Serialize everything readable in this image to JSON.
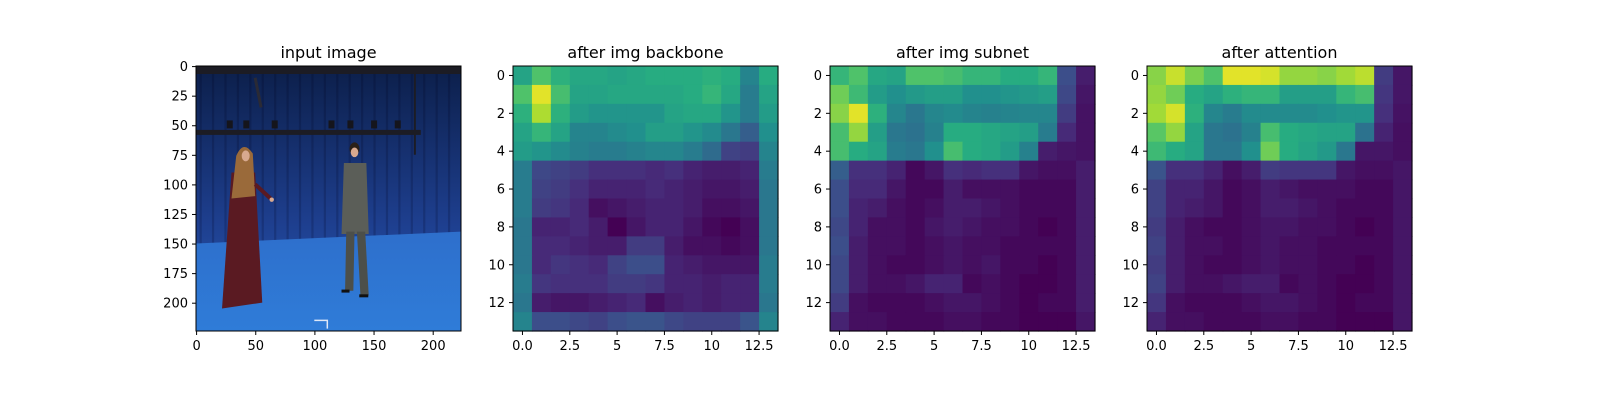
{
  "chart_data": [
    {
      "type": "image",
      "title": "input image",
      "xticks": [
        0,
        50,
        100,
        150,
        200
      ],
      "yticks": [
        0,
        25,
        50,
        75,
        100,
        125,
        150,
        175,
        200
      ],
      "xlim": [
        0,
        224
      ],
      "ylim": [
        224,
        0
      ],
      "image_colors": {
        "curtain_top": "#0c1f4a",
        "curtain_mid": "#1e3f8f",
        "floor": "#2f7cd8",
        "rig": "#1c1c24",
        "left_person_hair": "#9a6a3a",
        "left_person_dress": "#5a1a22",
        "right_person_suit": "#5b5e58",
        "skin": "#d8a98f"
      }
    },
    {
      "type": "heatmap",
      "title": "after img backbone",
      "colormap": "viridis",
      "xticks": [
        0,
        2.5,
        5.0,
        7.5,
        10.0,
        12.5
      ],
      "yticks": [
        0,
        2,
        4,
        6,
        8,
        10,
        12
      ],
      "values": [
        [
          0.58,
          0.72,
          0.64,
          0.6,
          0.6,
          0.58,
          0.6,
          0.62,
          0.62,
          0.62,
          0.64,
          0.62,
          0.45,
          0.62
        ],
        [
          0.72,
          0.96,
          0.7,
          0.58,
          0.58,
          0.6,
          0.6,
          0.6,
          0.6,
          0.62,
          0.66,
          0.6,
          0.42,
          0.58
        ],
        [
          0.64,
          0.88,
          0.64,
          0.55,
          0.52,
          0.52,
          0.52,
          0.52,
          0.58,
          0.6,
          0.6,
          0.52,
          0.42,
          0.55
        ],
        [
          0.58,
          0.66,
          0.58,
          0.45,
          0.45,
          0.48,
          0.5,
          0.56,
          0.56,
          0.52,
          0.48,
          0.4,
          0.3,
          0.5
        ],
        [
          0.55,
          0.52,
          0.48,
          0.44,
          0.42,
          0.42,
          0.44,
          0.46,
          0.46,
          0.42,
          0.35,
          0.2,
          0.18,
          0.45
        ],
        [
          0.42,
          0.22,
          0.2,
          0.18,
          0.14,
          0.14,
          0.14,
          0.12,
          0.14,
          0.1,
          0.08,
          0.08,
          0.1,
          0.42
        ],
        [
          0.42,
          0.2,
          0.18,
          0.14,
          0.1,
          0.1,
          0.1,
          0.12,
          0.1,
          0.08,
          0.06,
          0.06,
          0.08,
          0.4
        ],
        [
          0.42,
          0.18,
          0.16,
          0.12,
          0.04,
          0.06,
          0.08,
          0.1,
          0.1,
          0.08,
          0.04,
          0.04,
          0.06,
          0.4
        ],
        [
          0.4,
          0.1,
          0.1,
          0.12,
          0.08,
          0.0,
          0.06,
          0.1,
          0.1,
          0.06,
          0.02,
          0.0,
          0.04,
          0.4
        ],
        [
          0.4,
          0.12,
          0.12,
          0.1,
          0.08,
          0.08,
          0.18,
          0.18,
          0.08,
          0.04,
          0.04,
          0.02,
          0.04,
          0.4
        ],
        [
          0.4,
          0.12,
          0.16,
          0.14,
          0.12,
          0.2,
          0.24,
          0.24,
          0.1,
          0.08,
          0.06,
          0.06,
          0.06,
          0.42
        ],
        [
          0.42,
          0.16,
          0.14,
          0.14,
          0.14,
          0.18,
          0.18,
          0.16,
          0.1,
          0.1,
          0.08,
          0.1,
          0.1,
          0.42
        ],
        [
          0.4,
          0.08,
          0.06,
          0.06,
          0.08,
          0.1,
          0.12,
          0.04,
          0.08,
          0.1,
          0.08,
          0.1,
          0.1,
          0.4
        ],
        [
          0.45,
          0.24,
          0.24,
          0.22,
          0.2,
          0.24,
          0.26,
          0.26,
          0.22,
          0.2,
          0.2,
          0.2,
          0.26,
          0.45
        ]
      ]
    },
    {
      "type": "heatmap",
      "title": "after img subnet",
      "colormap": "viridis",
      "xticks": [
        0,
        2.5,
        5.0,
        7.5,
        10.0,
        12.5
      ],
      "yticks": [
        0,
        2,
        4,
        6,
        8,
        10,
        12
      ],
      "values": [
        [
          0.66,
          0.72,
          0.6,
          0.58,
          0.72,
          0.72,
          0.7,
          0.66,
          0.66,
          0.62,
          0.62,
          0.66,
          0.24,
          0.08
        ],
        [
          0.78,
          0.68,
          0.55,
          0.5,
          0.54,
          0.56,
          0.56,
          0.5,
          0.5,
          0.52,
          0.54,
          0.56,
          0.22,
          0.06
        ],
        [
          0.82,
          0.96,
          0.64,
          0.46,
          0.4,
          0.46,
          0.48,
          0.45,
          0.44,
          0.45,
          0.46,
          0.46,
          0.18,
          0.05
        ],
        [
          0.7,
          0.84,
          0.56,
          0.4,
          0.38,
          0.44,
          0.62,
          0.62,
          0.6,
          0.58,
          0.56,
          0.42,
          0.12,
          0.05
        ],
        [
          0.7,
          0.62,
          0.58,
          0.42,
          0.4,
          0.5,
          0.7,
          0.62,
          0.6,
          0.55,
          0.44,
          0.08,
          0.06,
          0.05
        ],
        [
          0.3,
          0.14,
          0.14,
          0.1,
          0.02,
          0.06,
          0.14,
          0.12,
          0.14,
          0.14,
          0.06,
          0.04,
          0.04,
          0.08
        ],
        [
          0.24,
          0.12,
          0.12,
          0.06,
          0.02,
          0.02,
          0.08,
          0.04,
          0.04,
          0.04,
          0.02,
          0.02,
          0.02,
          0.08
        ],
        [
          0.24,
          0.1,
          0.08,
          0.04,
          0.02,
          0.04,
          0.08,
          0.08,
          0.06,
          0.04,
          0.02,
          0.02,
          0.02,
          0.08
        ],
        [
          0.22,
          0.1,
          0.04,
          0.04,
          0.02,
          0.06,
          0.08,
          0.06,
          0.04,
          0.04,
          0.02,
          0.0,
          0.02,
          0.08
        ],
        [
          0.24,
          0.08,
          0.04,
          0.04,
          0.02,
          0.04,
          0.06,
          0.04,
          0.04,
          0.02,
          0.02,
          0.02,
          0.02,
          0.08
        ],
        [
          0.22,
          0.08,
          0.04,
          0.02,
          0.02,
          0.04,
          0.06,
          0.04,
          0.06,
          0.02,
          0.02,
          0.0,
          0.02,
          0.08
        ],
        [
          0.22,
          0.08,
          0.04,
          0.04,
          0.06,
          0.1,
          0.1,
          0.02,
          0.04,
          0.02,
          0.0,
          0.0,
          0.02,
          0.08
        ],
        [
          0.18,
          0.04,
          0.02,
          0.02,
          0.02,
          0.04,
          0.06,
          0.06,
          0.04,
          0.02,
          0.0,
          0.02,
          0.02,
          0.08
        ],
        [
          0.1,
          0.04,
          0.04,
          0.02,
          0.02,
          0.02,
          0.04,
          0.04,
          0.02,
          0.02,
          0.0,
          0.0,
          0.0,
          0.06
        ]
      ]
    },
    {
      "type": "heatmap",
      "title": "after attention",
      "colormap": "viridis",
      "xticks": [
        0,
        2.5,
        5.0,
        7.5,
        10.0,
        12.5
      ],
      "yticks": [
        0,
        2,
        4,
        6,
        8,
        10,
        12
      ],
      "values": [
        [
          0.82,
          0.92,
          0.8,
          0.72,
          0.96,
          0.96,
          0.94,
          0.84,
          0.84,
          0.82,
          0.86,
          0.9,
          0.18,
          0.06
        ],
        [
          0.84,
          0.78,
          0.62,
          0.58,
          0.64,
          0.66,
          0.66,
          0.56,
          0.56,
          0.56,
          0.66,
          0.7,
          0.16,
          0.06
        ],
        [
          0.86,
          0.94,
          0.64,
          0.46,
          0.42,
          0.48,
          0.48,
          0.48,
          0.48,
          0.5,
          0.52,
          0.52,
          0.14,
          0.05
        ],
        [
          0.74,
          0.84,
          0.58,
          0.4,
          0.38,
          0.44,
          0.7,
          0.62,
          0.6,
          0.58,
          0.58,
          0.38,
          0.1,
          0.04
        ],
        [
          0.68,
          0.62,
          0.58,
          0.4,
          0.4,
          0.5,
          0.78,
          0.62,
          0.58,
          0.54,
          0.4,
          0.06,
          0.06,
          0.04
        ],
        [
          0.26,
          0.14,
          0.14,
          0.1,
          0.04,
          0.08,
          0.18,
          0.16,
          0.16,
          0.16,
          0.06,
          0.04,
          0.04,
          0.06
        ],
        [
          0.2,
          0.1,
          0.1,
          0.06,
          0.02,
          0.04,
          0.08,
          0.06,
          0.04,
          0.04,
          0.04,
          0.02,
          0.02,
          0.06
        ],
        [
          0.2,
          0.1,
          0.08,
          0.06,
          0.02,
          0.04,
          0.08,
          0.08,
          0.06,
          0.04,
          0.02,
          0.02,
          0.02,
          0.06
        ],
        [
          0.18,
          0.08,
          0.04,
          0.02,
          0.02,
          0.04,
          0.06,
          0.06,
          0.04,
          0.04,
          0.02,
          0.0,
          0.02,
          0.06
        ],
        [
          0.2,
          0.08,
          0.04,
          0.04,
          0.02,
          0.04,
          0.06,
          0.04,
          0.04,
          0.02,
          0.02,
          0.02,
          0.02,
          0.06
        ],
        [
          0.18,
          0.08,
          0.04,
          0.02,
          0.02,
          0.04,
          0.06,
          0.04,
          0.04,
          0.02,
          0.02,
          0.0,
          0.02,
          0.06
        ],
        [
          0.2,
          0.08,
          0.04,
          0.04,
          0.06,
          0.08,
          0.08,
          0.02,
          0.04,
          0.02,
          0.0,
          0.0,
          0.02,
          0.06
        ],
        [
          0.16,
          0.04,
          0.02,
          0.02,
          0.02,
          0.04,
          0.06,
          0.06,
          0.04,
          0.02,
          0.0,
          0.02,
          0.02,
          0.06
        ],
        [
          0.1,
          0.04,
          0.04,
          0.02,
          0.02,
          0.02,
          0.04,
          0.04,
          0.02,
          0.02,
          0.0,
          0.0,
          0.0,
          0.06
        ]
      ]
    }
  ]
}
